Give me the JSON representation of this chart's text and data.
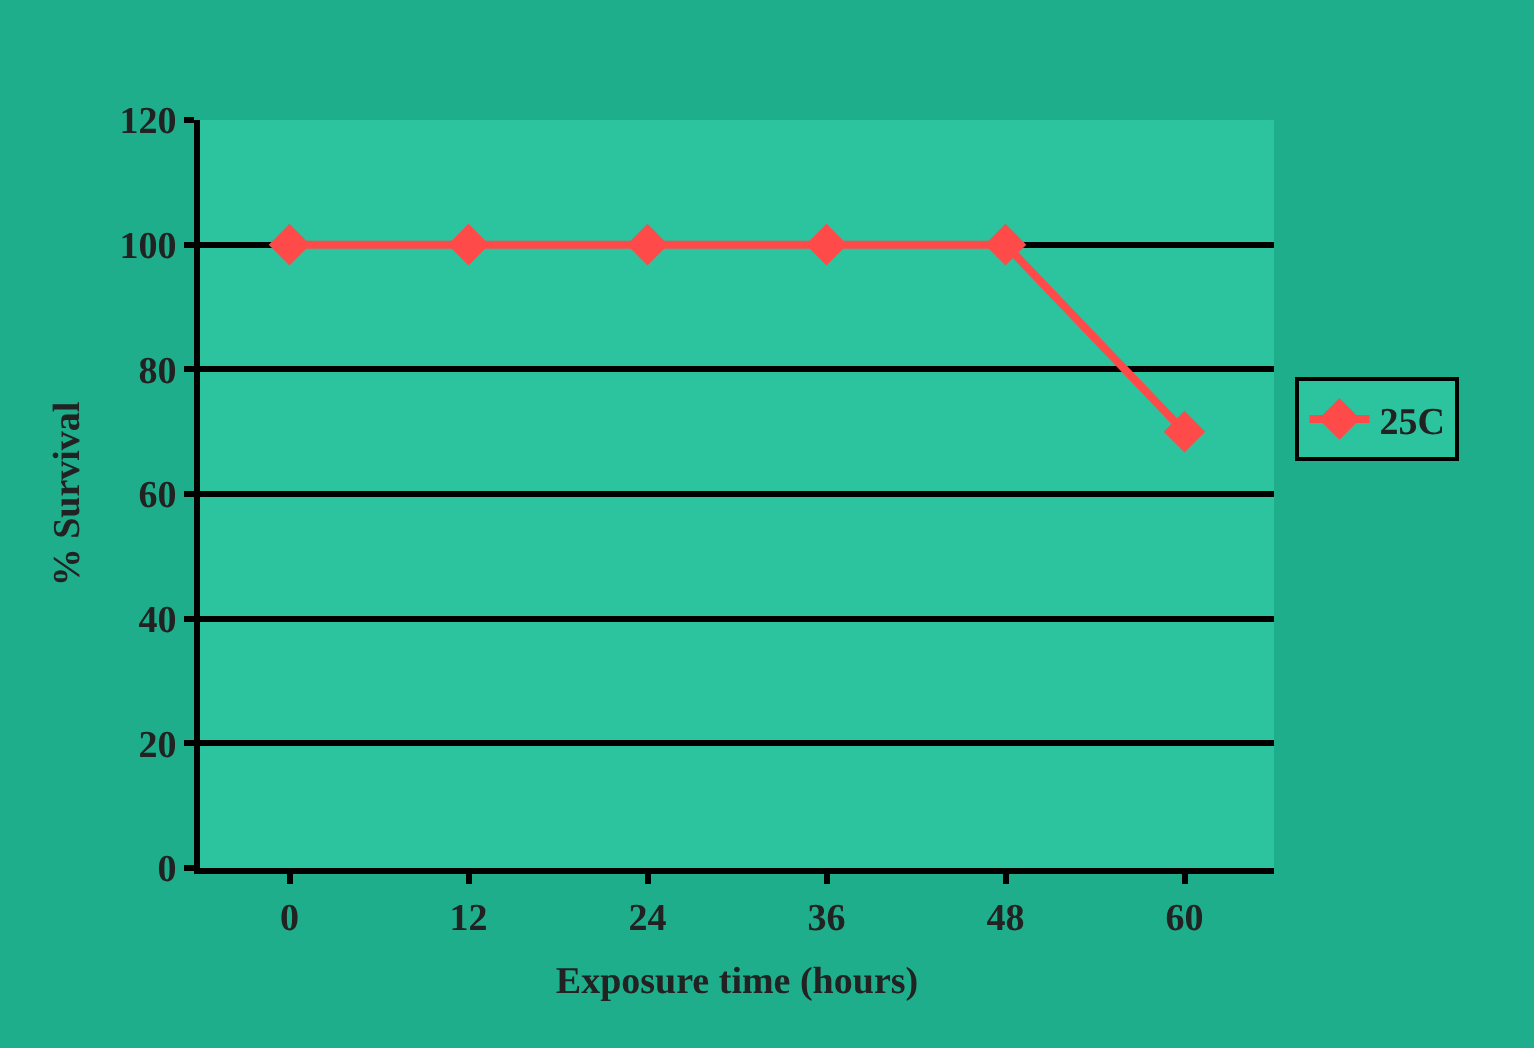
{
  "chart_data": {
    "type": "line",
    "xlabel": "Exposure time (hours)",
    "ylabel": "% Survival",
    "categories": [
      "0",
      "12",
      "24",
      "36",
      "48",
      "60"
    ],
    "series": [
      {
        "name": "25C",
        "color": "#ff4a4a",
        "values": [
          100,
          100,
          100,
          100,
          100,
          70
        ]
      }
    ],
    "ylim": [
      0,
      120
    ],
    "yticks": [
      0,
      20,
      40,
      60,
      80,
      100,
      120
    ],
    "grid": "y",
    "legend": "right",
    "marker": "diamond",
    "line_style": "solid"
  }
}
